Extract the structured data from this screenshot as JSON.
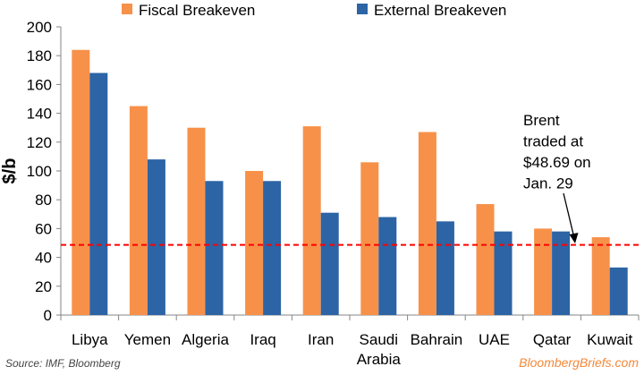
{
  "chart_data": {
    "type": "bar",
    "title": "",
    "xlabel": "",
    "ylabel": "$/b",
    "ylim": [
      0,
      200
    ],
    "yticks": [
      0,
      20,
      40,
      60,
      80,
      100,
      120,
      140,
      160,
      180,
      200
    ],
    "categories": [
      [
        "Libya"
      ],
      [
        "Yemen"
      ],
      [
        "Algeria"
      ],
      [
        "Iraq"
      ],
      [
        "Iran"
      ],
      [
        "Saudi",
        "Arabia"
      ],
      [
        "Bahrain"
      ],
      [
        "UAE"
      ],
      [
        "Qatar"
      ],
      [
        "Kuwait"
      ]
    ],
    "series": [
      {
        "name": "Fiscal Breakeven",
        "color": "#f79149",
        "values": [
          184,
          145,
          130,
          100,
          131,
          106,
          127,
          77,
          60,
          54
        ]
      },
      {
        "name": "External Breakeven",
        "color": "#2c64a5",
        "values": [
          168,
          108,
          93,
          93,
          71,
          68,
          65,
          58,
          58,
          33
        ]
      }
    ],
    "reference_line": {
      "value": 48.69,
      "color": "#ff0000",
      "style": "dashed"
    },
    "annotation": [
      "Brent",
      "traded at",
      "$48.69 on",
      "Jan. 29"
    ],
    "legend_position": "top",
    "grid": false
  },
  "footer": {
    "source": "Source: IMF, Bloomberg",
    "brand": "BloombergBriefs.com"
  }
}
